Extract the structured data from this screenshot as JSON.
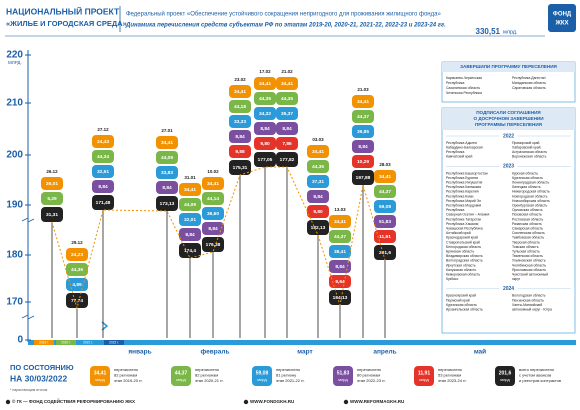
{
  "header": {
    "project_line1": "НАЦИОНАЛЬНЫЙ ПРОЕКТ",
    "project_line2": "«ЖИЛЬЕ И ГОРОДСКАЯ СРЕДА»",
    "title": "Федеральный проект «Обеспечение устойчивого сокращения непригодного для проживания жилищного фонда»",
    "subtitle": "Динамика перечисления средств субъектам РФ по этапам 2019-20, 2020-21, 2021-22, 2022-23 и 2023-24 гг.",
    "total_amount": "330,51",
    "total_unit": "млрд.",
    "logo": [
      "ФОНД",
      "ЖКХ"
    ]
  },
  "axis": {
    "unit": "МЛРД.",
    "ticks": [
      "220",
      "210",
      "200",
      "190",
      "180",
      "170",
      "0"
    ]
  },
  "timeline": {
    "years": [
      "2019 г.",
      "2020 г.",
      "2021 г.",
      "2022 г."
    ],
    "months": [
      "январь",
      "февраль",
      "март",
      "апрель",
      "май"
    ]
  },
  "columns": [
    {
      "date": "26.12",
      "tags": [
        "26,01",
        "5,29"
      ],
      "total": "31,31"
    },
    {
      "date": "29.12",
      "tags": [
        "24,23",
        "44,36",
        "4,89"
      ],
      "total": "77,74"
    },
    {
      "date": "27.12",
      "tags": [
        "24,43",
        "44,34",
        "32,51",
        "8,84"
      ],
      "total": "171,48"
    },
    {
      "date": "27.01",
      "tags": [
        "34,41",
        "44,09",
        "33,83",
        "8,84"
      ],
      "total": "173,13"
    },
    {
      "date": "31.01",
      "tags": [
        "34,41",
        "44,09",
        "32,01",
        "8,84"
      ],
      "total": "174,4"
    },
    {
      "date": "10.02",
      "tags": [
        "34,41",
        "44,14",
        "36,60",
        "8,84"
      ],
      "total": "176,38"
    },
    {
      "date": "23.02",
      "tags": [
        "34,41",
        "44,18",
        "33,33",
        "8,84",
        "9,88"
      ],
      "total": "175,31"
    },
    {
      "date": "17.02",
      "tags": [
        "34,41",
        "44,35",
        "34,32",
        "8,84",
        "9,80"
      ],
      "total": "177,05"
    },
    {
      "date": "21.02",
      "tags": [
        "34,41",
        "44,35",
        "35,37",
        "8,84",
        "7,86"
      ],
      "total": "177,82"
    },
    {
      "date": "03.03",
      "tags": [
        "34,41",
        "44,36",
        "37,31",
        "8,84",
        "9,80"
      ],
      "total": "182,13"
    },
    {
      "date": "13.03",
      "tags": [
        "34,41",
        "44,37",
        "38,41",
        "8,84",
        "9,64"
      ],
      "total": "184,13"
    },
    {
      "date": "21.03",
      "tags": [
        "34,41",
        "44,37",
        "39,85",
        "8,84",
        "10,29"
      ],
      "total": "197,88"
    },
    {
      "date": "28.03",
      "tags": [
        "34,41",
        "44,37",
        "59,08",
        "51,83",
        "11,91"
      ],
      "total": "201,6"
    }
  ],
  "panel": {
    "completed": {
      "title": "ЗАВЕРШИЛИ ПРОГРАММУ ПЕРЕСЕЛЕНИЯ",
      "left": [
        "Карачаево-Черкесская",
        "Республика",
        "Сахалинская область",
        "Чеченская Республика"
      ],
      "right": [
        "Республика Дагестан",
        "Магаданская область",
        "Саратовская область"
      ]
    },
    "agreements": {
      "title": [
        "ПОДПИСАЛИ СОГЛАШЕНИЯ",
        "О ДОСРОЧНОМ ЗАВЕРШЕНИИ",
        "ПРОГРАММЫ ПЕРЕСЕЛЕНИЯ"
      ],
      "groups": [
        {
          "year": "2022",
          "left": [
            "Республика Адыгея",
            "Кабардино-Балкарская",
            "Республика",
            "Камчатский край"
          ],
          "right": [
            "Приморский край",
            "Хабаровский край",
            "Астраханская область",
            "Воронежская область"
          ]
        },
        {
          "year": "2023",
          "left": [
            "Республика Башкортостан",
            "Республика Бурятия",
            "Республика Ингушетия",
            "Республика Калмыкия",
            "Республика Карелия",
            "Республика Коми",
            "Республика Марий Эл",
            "Республика Мордовия",
            "Республика",
            "Северная Осетия – Алания",
            "Республика Татарстан",
            "Республика Хакасия",
            "Чувашская Республика",
            "Алтайский край",
            "Краснодарский край",
            "Ставропольский край",
            "Белгородская область",
            "Брянская область",
            "Владимирская область",
            "Волгоградская область",
            "Иркутская область",
            "Калужская область",
            "Кемеровская область",
            "Кузбасс"
          ],
          "right": [
            "Курская область",
            "Курганская область",
            "Ленинградская область",
            "Липецкая область",
            "Нижегородская область",
            "Новгородская область",
            "Новосибирская область",
            "Оренбургская область",
            "Орловская область",
            "Псковская область",
            "Ростовская область",
            "Рязанская область",
            "Самарская область",
            "Смоленская область",
            "Тамбовская область",
            "Тверская область",
            "Томская область",
            "Тульская область",
            "Тюменская область",
            "Ульяновская область",
            "Челябинская область",
            "Ярославская область",
            "Чукотский автономный",
            "округ"
          ]
        },
        {
          "year": "2024",
          "left": [
            "Красноярский край",
            "Пермский край",
            "Курганская область",
            "Архангельская область"
          ],
          "right": [
            "Вологодская область",
            "Пензенская область",
            "Ханты-Мансийский",
            "автономный округ - Югра"
          ]
        }
      ]
    }
  },
  "status": {
    "line1": "ПО СОСТОЯНИЮ",
    "line2": "НА 30/03/2022",
    "note": "* нарастающим итогом"
  },
  "legend": [
    {
      "amount": "34,41",
      "unit": "млрд",
      "color": "#f39200",
      "text": [
        "перечислено",
        "82 регионам",
        "этап 2019-20 гг."
      ]
    },
    {
      "amount": "44,37",
      "unit": "млрд",
      "color": "#7ab648",
      "text": [
        "перечислено",
        "82 регионам",
        "этап 2020-21 гг."
      ]
    },
    {
      "amount": "59,08",
      "unit": "млрд",
      "color": "#2b9ad8",
      "text": [
        "перечислено",
        "81 региону",
        "этап 2021-22 гг."
      ]
    },
    {
      "amount": "51,83",
      "unit": "млрд",
      "color": "#7b4fa0",
      "text": [
        "перечислено",
        "80 регионам",
        "этап 2022-23 гг."
      ]
    },
    {
      "amount": "11,91",
      "unit": "млрд",
      "color": "#e6332a",
      "text": [
        "перечислено",
        "53 регионам",
        "этап 2023-24 гг."
      ]
    },
    {
      "amount": "201,6",
      "unit": "млрд",
      "color": "#222222",
      "text": [
        "всего перечислено",
        "с учетом авансов",
        "и реестров контрактов"
      ]
    }
  ],
  "footer": [
    "© ГК — ФОНД СОДЕЙСТВИЯ РЕФОРМИРОВАНИЮ ЖКХ",
    "WWW.FONDGKH.RU",
    "WWW.REFORMAGKH.RU"
  ]
}
